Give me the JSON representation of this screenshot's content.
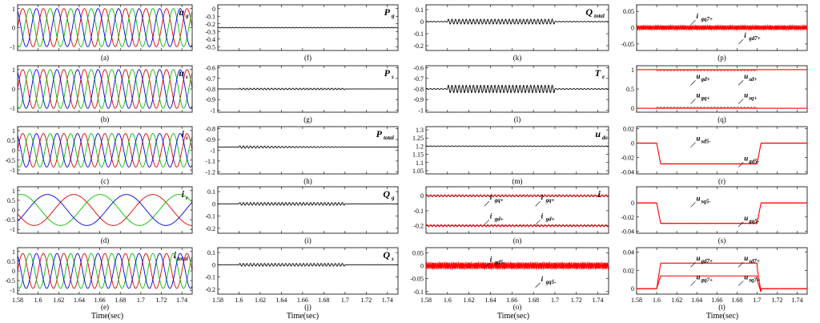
{
  "figure": {
    "x_axis_label": "Time(sec)",
    "x_ticks": [
      "1.58",
      "1.6",
      "1.62",
      "1.64",
      "1.66",
      "1.68",
      "1.7",
      "1.72",
      "1.74"
    ],
    "x_range": [
      1.58,
      1.75
    ],
    "colors": {
      "phase_a": "#e00000",
      "phase_b": "#00c000",
      "phase_c": "#0000e0",
      "black": "#000000",
      "red": "#ff0000"
    }
  },
  "chart_data": [
    {
      "panel": "(a)",
      "type": "line",
      "signal": "u",
      "subscript": "g",
      "kind": "3phase",
      "amplitude": 1,
      "frequency_hz": 50,
      "ylim": [
        -1.2,
        1.2
      ],
      "yticks": [
        "1",
        "0",
        "-1"
      ]
    },
    {
      "panel": "(b)",
      "type": "line",
      "signal": "u",
      "subscript": "s",
      "kind": "3phase",
      "amplitude": 1,
      "frequency_hz": 50,
      "ylim": [
        -1.2,
        1.2
      ],
      "yticks": [
        "1",
        "0",
        "-1"
      ]
    },
    {
      "panel": "(c)",
      "type": "line",
      "signal": "i",
      "subscript": "s",
      "kind": "3phase",
      "amplitude": 0.85,
      "frequency_hz": 50,
      "ylim": [
        -1.2,
        1.2
      ],
      "yticks": [
        "1",
        "0.5",
        "0",
        "-0.5",
        "-1"
      ]
    },
    {
      "panel": "(d)",
      "type": "line",
      "signal": "i",
      "subscript": "r",
      "kind": "3phase",
      "amplitude": 0.8,
      "frequency_hz": 13,
      "ylim": [
        -1.2,
        1.2
      ],
      "yticks": [
        "1",
        "0.5",
        "0",
        "-0.5",
        "-1"
      ]
    },
    {
      "panel": "(e)",
      "type": "line",
      "signal": "i",
      "subscript": "total",
      "kind": "3phase",
      "amplitude": 0.9,
      "frequency_hz": 50,
      "ylim": [
        -1.2,
        1.2
      ],
      "yticks": [
        "1",
        "0.5",
        "0",
        "-0.5",
        "-1"
      ]
    },
    {
      "panel": "(f)",
      "type": "line",
      "signal": "P",
      "subscript": "g",
      "kind": "flat",
      "base": -0.25,
      "ripple": 0.004,
      "ylim": [
        -0.55,
        0.05
      ],
      "yticks": [
        "0",
        "-0.1",
        "-0.2",
        "-0.3",
        "-0.4",
        "-0.5"
      ]
    },
    {
      "panel": "(g)",
      "type": "line",
      "signal": "P",
      "subscript": "s",
      "kind": "burst",
      "base": -0.8,
      "ripple": 0.007,
      "ylim": [
        -1.02,
        -0.58
      ],
      "yticks": [
        "-0.6",
        "-0.7",
        "-0.8",
        "-0.9",
        "-1"
      ]
    },
    {
      "panel": "(h)",
      "type": "line",
      "signal": "P",
      "subscript": "total",
      "kind": "burst_decay",
      "base": -0.97,
      "ripple": 0.012,
      "ylim": [
        -1.22,
        -0.78
      ],
      "yticks": [
        "-0.8",
        "-0.9",
        "-1",
        "-1.1",
        "-1.2"
      ]
    },
    {
      "panel": "(i)",
      "type": "line",
      "signal": "Q",
      "subscript": "g",
      "kind": "burst",
      "base": 0.0,
      "ripple": 0.011,
      "ylim": [
        -0.24,
        0.14
      ],
      "yticks": [
        "0.1",
        "0",
        "-0.1",
        "-0.2"
      ]
    },
    {
      "panel": "(j)",
      "type": "line",
      "signal": "Q",
      "subscript": "s",
      "kind": "burst",
      "base": 0.0,
      "ripple": 0.011,
      "ylim": [
        -0.24,
        0.14
      ],
      "yticks": [
        "0.1",
        "0",
        "-0.1",
        "-0.2"
      ]
    },
    {
      "panel": "(k)",
      "type": "line",
      "signal": "Q",
      "subscript": "total",
      "kind": "burst",
      "base": 0.0,
      "ripple": 0.02,
      "ylim": [
        -0.24,
        0.14
      ],
      "yticks": [
        "0.1",
        "0",
        "-0.1",
        "-0.2"
      ]
    },
    {
      "panel": "(l)",
      "type": "line",
      "signal": "T",
      "subscript": "e",
      "kind": "burst",
      "base": -0.8,
      "ripple": 0.035,
      "ylim": [
        -1.02,
        -0.58
      ],
      "yticks": [
        "-0.6",
        "-0.7",
        "-0.8",
        "-0.9",
        "-1"
      ]
    },
    {
      "panel": "(m)",
      "type": "line",
      "signal": "u",
      "subscript": "dc",
      "kind": "flat",
      "base": 1.2,
      "ripple": 0.002,
      "ylim": [
        1.03,
        1.32
      ],
      "yticks": [
        "1.3",
        "1.25",
        "1.2",
        "1.15",
        "1.1",
        "1.05"
      ]
    },
    {
      "panel": "(n)",
      "type": "line",
      "signal": "i",
      "subscript": "",
      "kind": "two_levels",
      "levels": [
        0.0,
        -0.2
      ],
      "ripple": 0.007,
      "ylim": [
        -0.25,
        0.06
      ],
      "yticks": [
        "0",
        "-0.1",
        "-0.2"
      ],
      "annotations": [
        "igq+",
        "igq+",
        "igd+",
        "igd+"
      ]
    },
    {
      "panel": "(o)",
      "type": "line",
      "signal": "",
      "subscript": "",
      "kind": "flat_red",
      "base": 0.0,
      "ripple": 0.012,
      "ylim": [
        -0.11,
        0.07
      ],
      "yticks": [
        "0.05",
        "0",
        "-0.05",
        "-0.1"
      ],
      "annotations": [
        "igd5-",
        "igq5-"
      ]
    },
    {
      "panel": "(p)",
      "type": "line",
      "signal": "",
      "subscript": "",
      "kind": "flat_red",
      "base": 0.0,
      "ripple": 0.006,
      "ylim": [
        -0.07,
        0.07
      ],
      "yticks": [
        "0.05",
        "0",
        "-0.05"
      ],
      "annotations": [
        "igq7+",
        "igd7+"
      ]
    },
    {
      "panel": "(q)",
      "type": "line",
      "signal": "",
      "subscript": "",
      "kind": "q_levels",
      "ylim": [
        -0.1,
        1.1
      ],
      "yticks": [
        "1",
        "0.5",
        "0"
      ],
      "annotations": [
        "ugd+",
        "usd+",
        "ugq+",
        "usq+"
      ]
    },
    {
      "panel": "(r)",
      "type": "line",
      "signal": "",
      "subscript": "",
      "kind": "step",
      "base": 0.0,
      "step_value": -0.029,
      "step_start": 1.6,
      "step_end": 1.7,
      "ylim": [
        -0.043,
        0.023
      ],
      "yticks": [
        "0.02",
        "0",
        "-0.02",
        "-0.04"
      ],
      "annotations": [
        "usd5-",
        "ugd5-"
      ]
    },
    {
      "panel": "(s)",
      "type": "line",
      "signal": "",
      "subscript": "",
      "kind": "step",
      "base": 0.0,
      "step_value": -0.029,
      "step_start": 1.6,
      "step_end": 1.7,
      "ylim": [
        -0.043,
        0.023
      ],
      "yticks": [
        "0",
        "-0.02",
        "-0.04"
      ],
      "annotations": [
        "usq5-",
        "ugq5-"
      ]
    },
    {
      "panel": "(t)",
      "type": "line",
      "signal": "",
      "subscript": "",
      "kind": "step_two",
      "levels": [
        0.028,
        0.014
      ],
      "step_start": 1.6,
      "step_end": 1.7,
      "ylim": [
        -0.006,
        0.045
      ],
      "yticks": [
        "0.04",
        "0.02",
        "0"
      ],
      "annotations": [
        "ugd7+",
        "usd7+",
        "ugq7+",
        "usq7+"
      ]
    }
  ]
}
